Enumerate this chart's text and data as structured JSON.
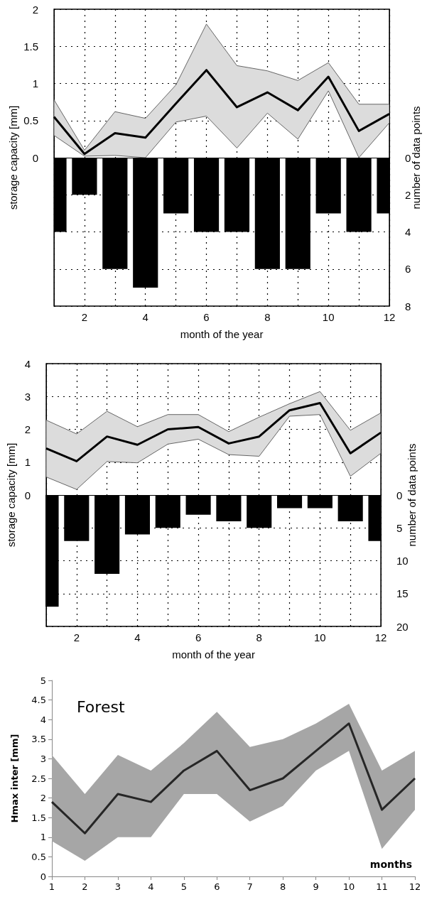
{
  "chart_data": [
    {
      "type": "line",
      "xlabel": "month of the year",
      "ylabel": "storage capacity [mm]",
      "y2label": "number of data points",
      "x": [
        1,
        2,
        3,
        4,
        5,
        6,
        7,
        8,
        9,
        10,
        11,
        12
      ],
      "xlim": [
        1,
        12
      ],
      "xticks": [
        {
          "value": 1,
          "label": null
        },
        2,
        {
          "value": 3,
          "label": null
        },
        4,
        {
          "value": 5,
          "label": null
        },
        6,
        {
          "value": 7,
          "label": null
        },
        8,
        {
          "value": 9,
          "label": null
        },
        10,
        {
          "value": 11,
          "label": null
        },
        12
      ],
      "ylim": [
        -2,
        2
      ],
      "yticks": [
        0,
        0.5,
        1,
        1.5,
        2
      ],
      "y2lim": [
        8,
        -8
      ],
      "y2ticks": [
        0,
        2,
        4,
        6,
        8
      ],
      "grid": true,
      "series": [
        {
          "color": "#000000",
          "values": [
            0.55,
            0.05,
            0.33,
            0.27,
            0.73,
            1.18,
            0.68,
            0.88,
            0.64,
            1.09,
            0.36,
            0.59
          ],
          "lower": [
            0.3,
            0.02,
            0.03,
            0.0,
            0.48,
            0.56,
            0.13,
            0.6,
            0.25,
            0.9,
            0.0,
            0.47
          ],
          "upper": [
            0.78,
            0.1,
            0.62,
            0.53,
            0.98,
            1.8,
            1.24,
            1.17,
            1.04,
            1.28,
            0.72,
            0.72
          ]
        },
        {
          "type": "bar",
          "axis": "y2",
          "color": "#000000",
          "values": [
            4,
            2,
            6,
            7,
            3,
            4,
            4,
            6,
            6,
            3,
            4,
            3
          ]
        }
      ]
    },
    {
      "type": "line",
      "xlabel": "month of the year",
      "ylabel": "storage capacity [mm]",
      "y2label": "number of data points",
      "x": [
        1,
        2,
        3,
        4,
        5,
        6,
        7,
        8,
        9,
        10,
        11,
        12
      ],
      "xlim": [
        1,
        12
      ],
      "xticks": [
        {
          "value": 1,
          "label": null
        },
        2,
        {
          "value": 3,
          "label": null
        },
        4,
        {
          "value": 5,
          "label": null
        },
        6,
        {
          "value": 7,
          "label": null
        },
        8,
        {
          "value": 9,
          "label": null
        },
        10,
        {
          "value": 11,
          "label": null
        },
        12
      ],
      "ylim": [
        -4,
        4
      ],
      "yticks": [
        0,
        1,
        2,
        3,
        4
      ],
      "y2lim": [
        20,
        -20
      ],
      "y2ticks": [
        0,
        5,
        10,
        15,
        20
      ],
      "grid": true,
      "series": [
        {
          "color": "#000000",
          "values": [
            1.42,
            1.03,
            1.78,
            1.53,
            2.0,
            2.07,
            1.57,
            1.78,
            2.58,
            2.8,
            1.27,
            1.9
          ],
          "lower": [
            0.55,
            0.17,
            1.02,
            0.98,
            1.55,
            1.7,
            1.23,
            1.18,
            2.4,
            2.45,
            0.57,
            1.27
          ],
          "upper": [
            2.28,
            1.86,
            2.55,
            2.08,
            2.45,
            2.45,
            1.93,
            2.37,
            2.78,
            3.15,
            1.97,
            2.5
          ]
        },
        {
          "type": "bar",
          "axis": "y2",
          "color": "#000000",
          "values": [
            17,
            7,
            12,
            6,
            5,
            3,
            4,
            5,
            2,
            2,
            4,
            7
          ]
        }
      ]
    },
    {
      "type": "line",
      "xlabel": "months",
      "ylabel": "Hmax inter [mm]",
      "annotations": [
        "Forest"
      ],
      "x": [
        1,
        2,
        3,
        4,
        5,
        6,
        7,
        8,
        9,
        10,
        11,
        12
      ],
      "xlim": [
        1,
        12
      ],
      "xticks": [
        1,
        2,
        3,
        4,
        5,
        6,
        7,
        8,
        9,
        10,
        11,
        12
      ],
      "ylim": [
        0,
        5
      ],
      "yticks": [
        0,
        0.5,
        1,
        1.5,
        2,
        2.5,
        3,
        3.5,
        4,
        4.5,
        5
      ],
      "series": [
        {
          "color": "#262626",
          "values": [
            1.9,
            1.1,
            2.1,
            1.9,
            2.7,
            3.2,
            2.2,
            2.5,
            3.2,
            3.9,
            1.7,
            2.5
          ],
          "lower": [
            0.9,
            0.4,
            1.0,
            1.0,
            2.1,
            2.1,
            1.4,
            1.8,
            2.7,
            3.2,
            0.7,
            1.7
          ],
          "upper": [
            3.1,
            2.1,
            3.1,
            2.7,
            3.4,
            4.2,
            3.3,
            3.5,
            3.9,
            4.4,
            2.7,
            3.2
          ]
        }
      ]
    }
  ]
}
